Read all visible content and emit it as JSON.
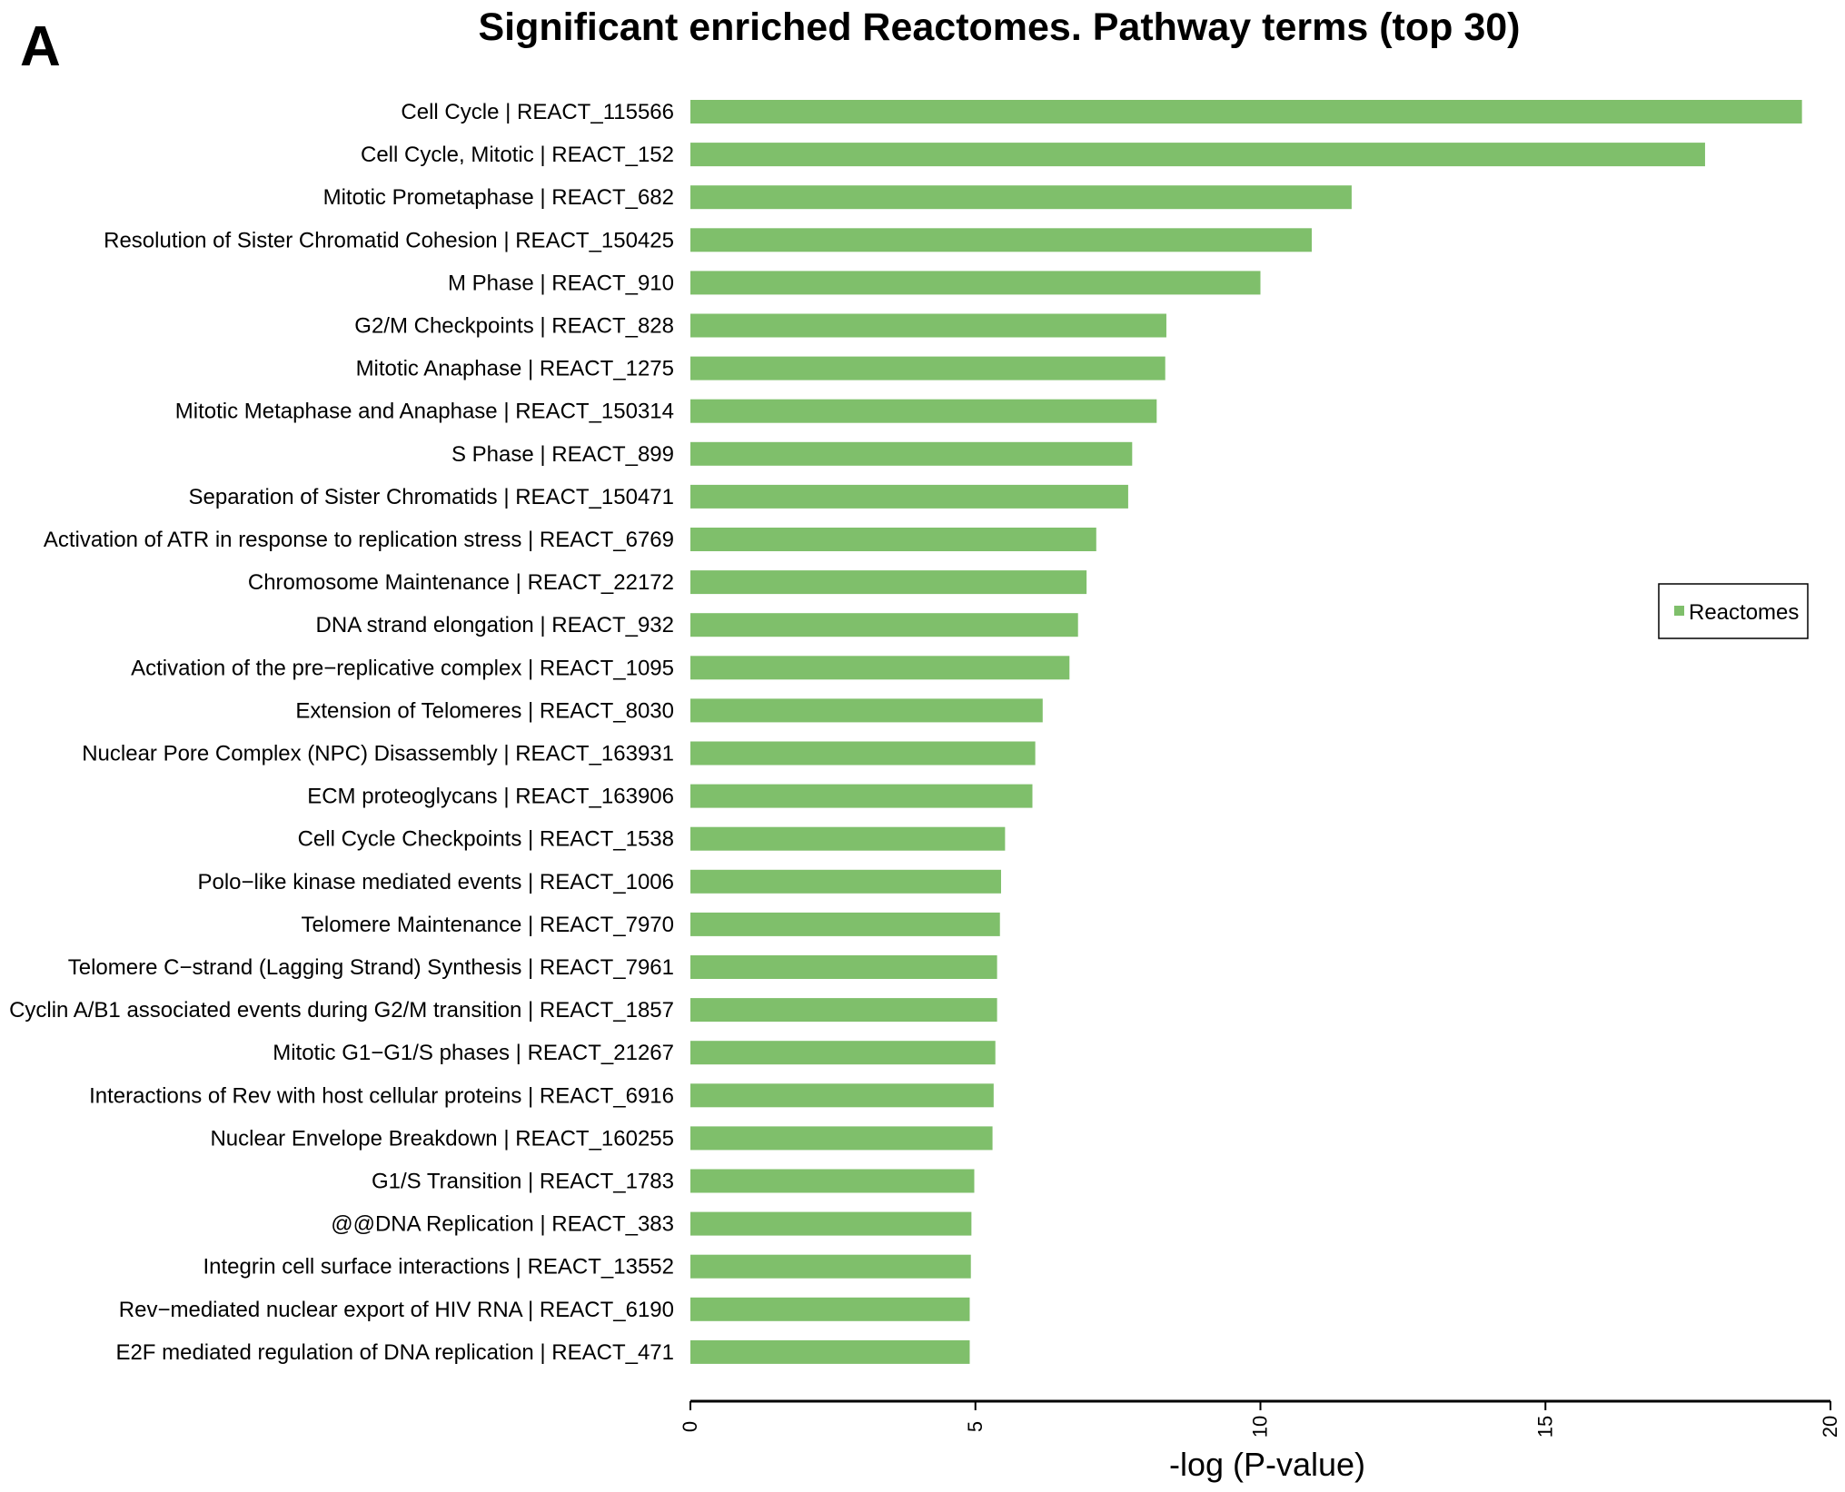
{
  "panel_label": "A",
  "chart_data": {
    "type": "bar",
    "orientation": "horizontal",
    "title": "Significant enriched Reactomes. Pathway terms (top 30)",
    "xlabel": "-log (P-value)",
    "ylabel": "",
    "xlim": [
      0,
      20
    ],
    "xticks": [
      0,
      5,
      10,
      15,
      20
    ],
    "grid": false,
    "legend_position": "right",
    "colors": {
      "bar": "#7fbf6b",
      "axis": "#000000",
      "legend_border": "#000000"
    },
    "series": [
      {
        "name": "Reactomes",
        "values": [
          19.5,
          17.8,
          11.6,
          10.9,
          10.0,
          8.35,
          8.33,
          8.18,
          7.75,
          7.68,
          7.12,
          6.95,
          6.8,
          6.65,
          6.18,
          6.05,
          6.0,
          5.52,
          5.45,
          5.43,
          5.38,
          5.38,
          5.35,
          5.32,
          5.3,
          4.98,
          4.93,
          4.92,
          4.9,
          4.9
        ]
      }
    ],
    "categories": [
      "Cell Cycle | REACT_115566",
      "Cell Cycle, Mitotic | REACT_152",
      "Mitotic Prometaphase | REACT_682",
      "Resolution of Sister Chromatid Cohesion | REACT_150425",
      "M Phase | REACT_910",
      "G2/M Checkpoints | REACT_828",
      "Mitotic Anaphase | REACT_1275",
      "Mitotic Metaphase and Anaphase | REACT_150314",
      "S Phase | REACT_899",
      "Separation of Sister Chromatids | REACT_150471",
      "Activation of ATR in response to replication stress | REACT_6769",
      "Chromosome Maintenance | REACT_22172",
      "DNA strand elongation | REACT_932",
      "Activation of the pre−replicative complex | REACT_1095",
      "Extension of Telomeres | REACT_8030",
      "Nuclear Pore Complex (NPC) Disassembly | REACT_163931",
      "ECM proteoglycans | REACT_163906",
      "Cell Cycle Checkpoints | REACT_1538",
      "Polo−like kinase mediated events | REACT_1006",
      "Telomere Maintenance | REACT_7970",
      "Telomere C−strand (Lagging Strand) Synthesis | REACT_7961",
      "Cyclin A/B1 associated events during G2/M transition | REACT_1857",
      "Mitotic G1−G1/S phases | REACT_21267",
      "Interactions of Rev with host cellular proteins | REACT_6916",
      "Nuclear Envelope Breakdown | REACT_160255",
      "G1/S Transition | REACT_1783",
      "@@DNA Replication | REACT_383",
      "Integrin cell surface interactions | REACT_13552",
      "Rev−mediated nuclear export of HIV RNA | REACT_6190",
      "E2F mediated regulation of DNA replication | REACT_471"
    ]
  }
}
